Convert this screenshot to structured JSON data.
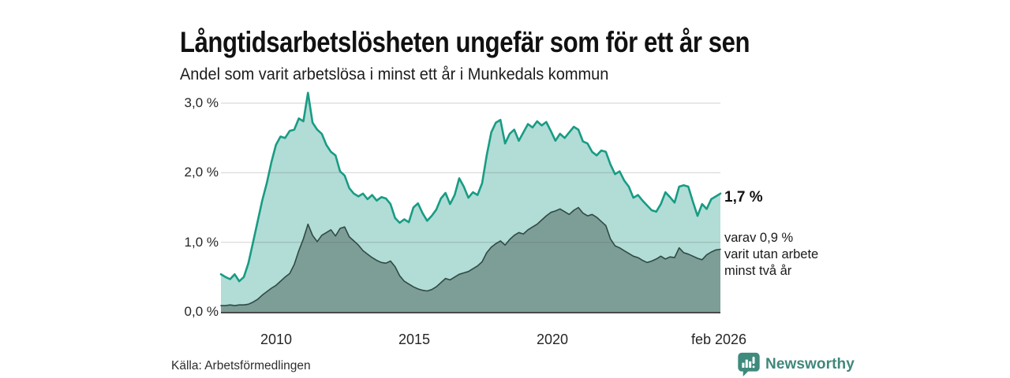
{
  "header": {
    "title": "Långtidsarbetslösheten ungefär som för ett år sen",
    "subtitle": "Andel som varit arbetslösa i minst ett år i Munkedals kommun"
  },
  "annotations": {
    "latest_value": "1,7 %",
    "two_year_note_line1": "varav 0,9 %",
    "two_year_note_line2": "varit utan arbete",
    "two_year_note_line3": "minst två år"
  },
  "footer": {
    "source": "Källa: Arbetsförmedlingen",
    "brand": "Newsworthy",
    "brand_icon": "bar-chart-speech-bubble-icon",
    "brand_color": "#40887b"
  },
  "chart_data": {
    "type": "area",
    "title": "Långtidsarbetslösheten ungefär som för ett år sen",
    "subtitle": "Andel som varit arbetslösa i minst ett år i Munkedals kommun",
    "xlabel": "",
    "ylabel": "",
    "x_unit": "decimal_year",
    "x_domain": [
      2008.0,
      2026.083
    ],
    "ylim": [
      0,
      3.3
    ],
    "grid": true,
    "x_tick_labels": [
      "2010",
      "2015",
      "2020",
      "feb 2026"
    ],
    "x_tick_values": [
      2010,
      2015,
      2020,
      2026.083
    ],
    "y_tick_labels": [
      "3,0 %",
      "2,0 %",
      "1,0 %",
      "0,0 %"
    ],
    "y_tick_values": [
      3.0,
      2.0,
      1.0,
      0.0
    ],
    "sampling": "points evenly spaced in time, 6 per year, 2008.00 to 2026.08 (feb 2026)",
    "series": [
      {
        "name": "Andel arbetslösa minst ett år",
        "line_color": "#189c84",
        "fill_color": "#b2dcd6",
        "latest_value_pct": 1.7,
        "values": [
          0.54,
          0.5,
          0.47,
          0.54,
          0.44,
          0.5,
          0.7,
          1.0,
          1.3,
          1.6,
          1.85,
          2.15,
          2.4,
          2.52,
          2.5,
          2.6,
          2.62,
          2.78,
          2.74,
          3.15,
          2.72,
          2.62,
          2.56,
          2.4,
          2.3,
          2.25,
          2.02,
          1.96,
          1.78,
          1.7,
          1.66,
          1.7,
          1.62,
          1.68,
          1.6,
          1.65,
          1.63,
          1.55,
          1.35,
          1.28,
          1.33,
          1.29,
          1.5,
          1.56,
          1.42,
          1.31,
          1.38,
          1.47,
          1.63,
          1.71,
          1.55,
          1.68,
          1.92,
          1.8,
          1.64,
          1.72,
          1.68,
          1.85,
          2.25,
          2.58,
          2.72,
          2.76,
          2.42,
          2.56,
          2.62,
          2.46,
          2.58,
          2.7,
          2.65,
          2.74,
          2.68,
          2.73,
          2.6,
          2.46,
          2.56,
          2.5,
          2.58,
          2.66,
          2.62,
          2.45,
          2.42,
          2.3,
          2.25,
          2.32,
          2.3,
          2.12,
          1.98,
          2.02,
          1.89,
          1.8,
          1.64,
          1.68,
          1.6,
          1.53,
          1.46,
          1.44,
          1.55,
          1.72,
          1.65,
          1.57,
          1.8,
          1.82,
          1.8,
          1.58,
          1.38,
          1.55,
          1.48,
          1.62,
          1.66,
          1.7
        ]
      },
      {
        "name": "Andel utan arbete minst två år",
        "line_color": "#2f4a45",
        "fill_color": "#7d9e97",
        "latest_value_pct": 0.9,
        "values": [
          0.09,
          0.09,
          0.1,
          0.09,
          0.1,
          0.1,
          0.11,
          0.14,
          0.18,
          0.24,
          0.29,
          0.34,
          0.38,
          0.44,
          0.5,
          0.55,
          0.68,
          0.88,
          1.05,
          1.26,
          1.1,
          1.01,
          1.1,
          1.14,
          1.18,
          1.09,
          1.2,
          1.22,
          1.08,
          1.02,
          0.96,
          0.88,
          0.83,
          0.78,
          0.74,
          0.71,
          0.7,
          0.73,
          0.65,
          0.52,
          0.44,
          0.4,
          0.36,
          0.33,
          0.31,
          0.3,
          0.32,
          0.36,
          0.42,
          0.48,
          0.46,
          0.5,
          0.54,
          0.56,
          0.58,
          0.62,
          0.66,
          0.72,
          0.85,
          0.93,
          0.98,
          1.02,
          0.96,
          1.04,
          1.1,
          1.14,
          1.12,
          1.18,
          1.22,
          1.26,
          1.32,
          1.38,
          1.43,
          1.45,
          1.48,
          1.44,
          1.4,
          1.46,
          1.5,
          1.42,
          1.38,
          1.4,
          1.36,
          1.3,
          1.24,
          1.05,
          0.95,
          0.92,
          0.88,
          0.84,
          0.8,
          0.78,
          0.74,
          0.71,
          0.73,
          0.76,
          0.8,
          0.76,
          0.79,
          0.78,
          0.92,
          0.85,
          0.83,
          0.8,
          0.77,
          0.75,
          0.82,
          0.86,
          0.89,
          0.9
        ]
      }
    ]
  }
}
